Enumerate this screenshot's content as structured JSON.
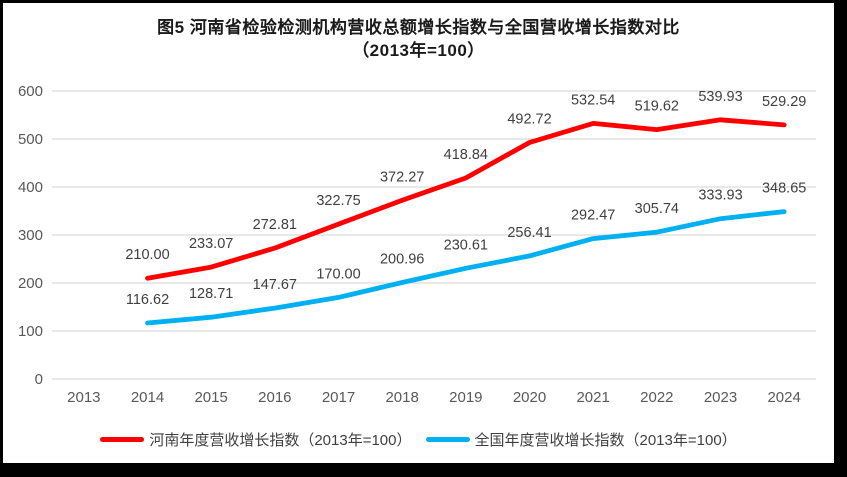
{
  "figure": {
    "background": "#FFFFFF",
    "frame_color": "#000000"
  },
  "chart_data": {
    "type": "line",
    "title": "图5  河南省检验检测机构营收总额增长指数与全国营收增长指数对比",
    "subtitle": "（2013年=100）",
    "x": [
      "2013",
      "2014",
      "2015",
      "2016",
      "2017",
      "2018",
      "2019",
      "2020",
      "2021",
      "2022",
      "2023",
      "2024"
    ],
    "ylim": [
      0,
      600
    ],
    "yticks": [
      0,
      100,
      200,
      300,
      400,
      500,
      600
    ],
    "grid": true,
    "legend_position": "bottom",
    "series": [
      {
        "name": "河南年度营收增长指数（2013年=100）",
        "color": "#FF0000",
        "values": [
          null,
          210.0,
          233.07,
          272.81,
          322.75,
          372.27,
          418.84,
          492.72,
          532.54,
          519.62,
          539.93,
          529.29
        ],
        "labels": [
          "",
          "210.00",
          "233.07",
          "272.81",
          "322.75",
          "372.27",
          "418.84",
          "492.72",
          "532.54",
          "519.62",
          "539.93",
          "529.29"
        ]
      },
      {
        "name": "全国年度营收增长指数（2013年=100）",
        "color": "#00B0F0",
        "values": [
          null,
          116.62,
          128.71,
          147.67,
          170.0,
          200.96,
          230.61,
          256.41,
          292.47,
          305.74,
          333.93,
          348.65
        ],
        "labels": [
          "",
          "116.62",
          "128.71",
          "147.67",
          "170.00",
          "200.96",
          "230.61",
          "256.41",
          "292.47",
          "305.74",
          "333.93",
          "348.65"
        ]
      }
    ],
    "colors": {
      "grid": "#D9D9D9",
      "axis_text": "#595959",
      "data_label": "#404040"
    }
  }
}
